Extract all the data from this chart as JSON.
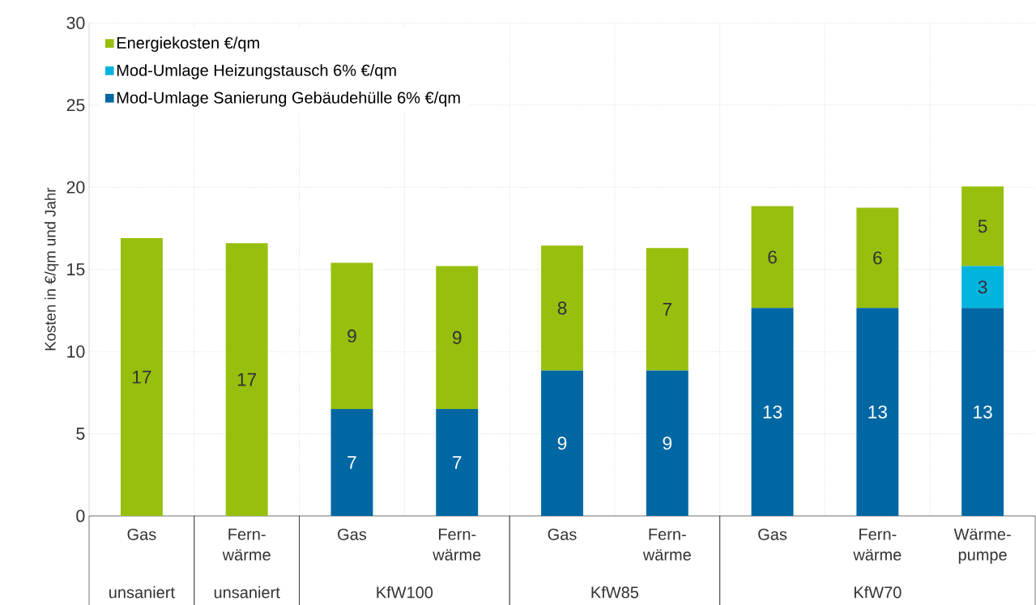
{
  "chart_data": {
    "type": "bar",
    "stacked": true,
    "ylabel": "Kosten in €/qm und Jahr",
    "categories": [
      "Gas",
      "Fern-wärme",
      "Gas",
      "Fern-wärme",
      "Gas",
      "Fern-wärme",
      "Gas",
      "Fern-wärme",
      "Wärme-pumpe"
    ],
    "annotations": [
      "unsaniert",
      "unsaniert",
      "KfW100",
      "KfW85",
      "KfW70"
    ],
    "series": [
      {
        "name": "Mod-Umlage Sanierung Gebäudehülle 6% €/qm",
        "color": "#0067a3",
        "values": [
          0,
          0,
          6.5,
          6.5,
          8.85,
          8.85,
          12.65,
          12.65,
          12.65
        ],
        "value_labels": [
          null,
          null,
          "7",
          "7",
          "9",
          "9",
          "13",
          "13",
          "13"
        ]
      },
      {
        "name": "Mod-Umlage Heizungstausch 6% €/qm",
        "color": "#00b4de",
        "values": [
          0,
          0,
          0,
          0,
          0,
          0,
          0,
          0,
          2.55
        ],
        "value_labels": [
          null,
          null,
          null,
          null,
          null,
          null,
          null,
          null,
          "3"
        ]
      },
      {
        "name": "Energiekosten €/qm",
        "color": "#97bf0d",
        "values": [
          16.9,
          16.6,
          8.9,
          8.7,
          7.6,
          7.45,
          6.2,
          6.1,
          4.85
        ],
        "value_labels": [
          "17",
          "17",
          "9",
          "9",
          "8",
          "7",
          "6",
          "6",
          "5"
        ]
      }
    ],
    "ylim": [
      0,
      30
    ],
    "yticks": [
      0,
      5,
      10,
      15,
      20,
      25,
      30
    ],
    "grid": true,
    "legend": "top left"
  }
}
